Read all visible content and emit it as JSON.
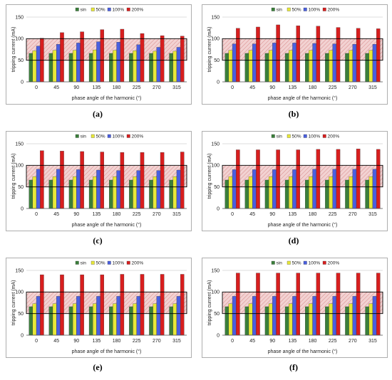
{
  "figure": {
    "panel_labels": [
      "(a)",
      "(b)",
      "(c)",
      "(d)",
      "(e)",
      "(f)"
    ]
  },
  "legend": [
    {
      "label": "sin",
      "color": "#3a7f3a"
    },
    {
      "label": "50%",
      "color": "#e8e838"
    },
    {
      "label": "100%",
      "color": "#4a5fe0"
    },
    {
      "label": "200%",
      "color": "#d81e1e"
    }
  ],
  "colors": {
    "band_fill": "#f2d2d2",
    "band_border": "#000000",
    "grid": "#bdbdbd"
  },
  "chart_data": [
    {
      "type": "bar",
      "label": "(a)",
      "xlabel": "phase angle of the harmonic (°)",
      "ylabel": "tripping current (mA)",
      "categories": [
        "0",
        "45",
        "90",
        "135",
        "180",
        "225",
        "270",
        "315"
      ],
      "ylim": [
        0,
        150
      ],
      "yticks": [
        0,
        50,
        100,
        150
      ],
      "grid": true,
      "legend_position": "top-right",
      "band": [
        50,
        100
      ],
      "series": [
        {
          "name": "sin",
          "values": [
            66,
            66,
            66,
            66,
            66,
            66,
            66,
            66
          ]
        },
        {
          "name": "50%",
          "values": [
            72,
            73,
            73,
            74,
            73,
            72,
            71,
            71
          ]
        },
        {
          "name": "100%",
          "values": [
            83,
            87,
            90,
            93,
            92,
            86,
            80,
            80
          ]
        },
        {
          "name": "200%",
          "values": [
            101,
            114,
            116,
            121,
            122,
            112,
            107,
            106
          ]
        }
      ]
    },
    {
      "type": "bar",
      "label": "(b)",
      "xlabel": "phase angle of the harmonic (°)",
      "ylabel": "tripping current (mA)",
      "categories": [
        "0",
        "45",
        "90",
        "135",
        "180",
        "225",
        "270",
        "315"
      ],
      "ylim": [
        0,
        150
      ],
      "yticks": [
        0,
        50,
        100,
        150
      ],
      "grid": true,
      "legend_position": "top-right",
      "band": [
        50,
        100
      ],
      "series": [
        {
          "name": "sin",
          "values": [
            66,
            66,
            66,
            66,
            66,
            66,
            66,
            66
          ]
        },
        {
          "name": "50%",
          "values": [
            73,
            73,
            73,
            73,
            73,
            73,
            73,
            73
          ]
        },
        {
          "name": "100%",
          "values": [
            88,
            88,
            90,
            90,
            89,
            88,
            87,
            87
          ]
        },
        {
          "name": "200%",
          "values": [
            124,
            127,
            132,
            130,
            129,
            126,
            124,
            123
          ]
        }
      ]
    },
    {
      "type": "bar",
      "label": "(c)",
      "xlabel": "phase angle of the harmonic (°)",
      "ylabel": "tripping current (mA)",
      "categories": [
        "0",
        "45",
        "90",
        "135",
        "180",
        "225",
        "270",
        "315"
      ],
      "ylim": [
        0,
        150
      ],
      "yticks": [
        0,
        50,
        100,
        150
      ],
      "grid": true,
      "legend_position": "top-right",
      "band": [
        50,
        100
      ],
      "series": [
        {
          "name": "sin",
          "values": [
            66,
            66,
            66,
            66,
            66,
            66,
            66,
            66
          ]
        },
        {
          "name": "50%",
          "values": [
            74,
            74,
            74,
            74,
            74,
            74,
            74,
            74
          ]
        },
        {
          "name": "100%",
          "values": [
            91,
            91,
            90,
            89,
            88,
            88,
            88,
            89
          ]
        },
        {
          "name": "200%",
          "values": [
            134,
            133,
            132,
            131,
            130,
            130,
            130,
            131
          ]
        }
      ]
    },
    {
      "type": "bar",
      "label": "(d)",
      "xlabel": "phase angle of the harmonic (°)",
      "ylabel": "tripping current (mA)",
      "categories": [
        "0",
        "45",
        "90",
        "135",
        "180",
        "225",
        "270",
        "315"
      ],
      "ylim": [
        0,
        150
      ],
      "yticks": [
        0,
        50,
        100,
        150
      ],
      "grid": true,
      "legend_position": "top-right",
      "band": [
        50,
        100
      ],
      "series": [
        {
          "name": "sin",
          "values": [
            66,
            66,
            66,
            66,
            66,
            66,
            66,
            66
          ]
        },
        {
          "name": "50%",
          "values": [
            74,
            74,
            74,
            74,
            74,
            74,
            74,
            74
          ]
        },
        {
          "name": "100%",
          "values": [
            90,
            90,
            90,
            90,
            91,
            91,
            91,
            91
          ]
        },
        {
          "name": "200%",
          "values": [
            136,
            136,
            136,
            136,
            137,
            137,
            138,
            137
          ]
        }
      ]
    },
    {
      "type": "bar",
      "label": "(e)",
      "xlabel": "phase angle of the harmonic (°)",
      "ylabel": "tripping current (mA)",
      "categories": [
        "0",
        "45",
        "90",
        "135",
        "180",
        "225",
        "270",
        "315"
      ],
      "ylim": [
        0,
        150
      ],
      "yticks": [
        0,
        50,
        100,
        150
      ],
      "grid": true,
      "legend_position": "top-right",
      "band": [
        50,
        100
      ],
      "series": [
        {
          "name": "sin",
          "values": [
            66,
            66,
            66,
            66,
            66,
            66,
            66,
            66
          ]
        },
        {
          "name": "50%",
          "values": [
            73,
            73,
            73,
            73,
            73,
            73,
            73,
            73
          ]
        },
        {
          "name": "100%",
          "values": [
            90,
            90,
            90,
            90,
            90,
            90,
            90,
            90
          ]
        },
        {
          "name": "200%",
          "values": [
            140,
            140,
            140,
            140,
            141,
            141,
            141,
            141
          ]
        }
      ]
    },
    {
      "type": "bar",
      "label": "(f)",
      "xlabel": "phase angle of the harmonic (°)",
      "ylabel": "tripping current (mA)",
      "categories": [
        "0",
        "45",
        "90",
        "135",
        "180",
        "225",
        "270",
        "315"
      ],
      "ylim": [
        0,
        150
      ],
      "yticks": [
        0,
        50,
        100,
        150
      ],
      "grid": true,
      "legend_position": "top-right",
      "band": [
        50,
        100
      ],
      "series": [
        {
          "name": "sin",
          "values": [
            66,
            66,
            66,
            66,
            66,
            66,
            66,
            66
          ]
        },
        {
          "name": "50%",
          "values": [
            73,
            73,
            73,
            73,
            73,
            73,
            73,
            73
          ]
        },
        {
          "name": "100%",
          "values": [
            90,
            90,
            90,
            90,
            90,
            90,
            90,
            90
          ]
        },
        {
          "name": "200%",
          "values": [
            144,
            144,
            144,
            144,
            144,
            144,
            144,
            144
          ]
        }
      ]
    }
  ]
}
